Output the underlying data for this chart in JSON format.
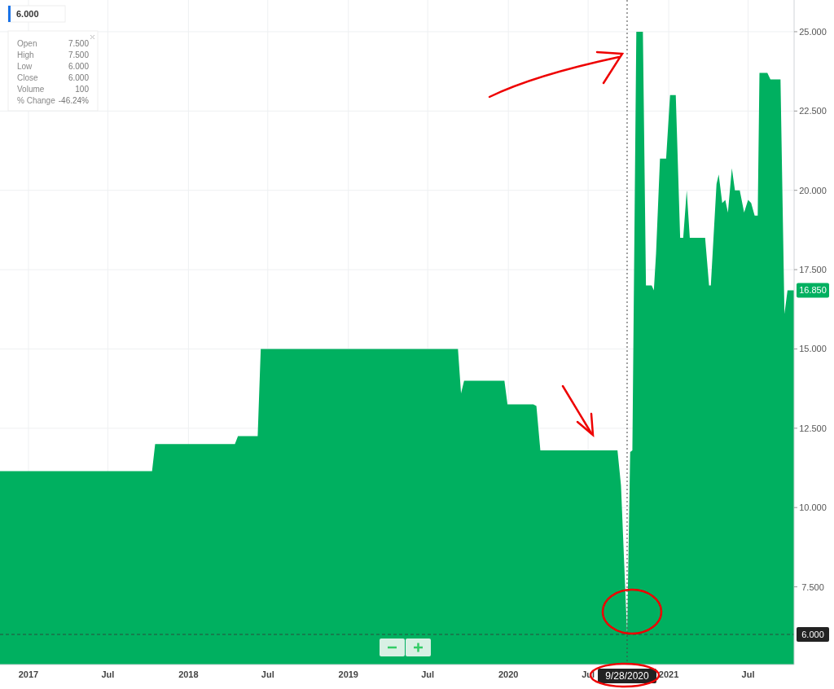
{
  "chart_data": {
    "type": "area",
    "x": [
      "2016-10-28",
      "2017-10-10",
      "2017-10-17",
      "2018-04-17",
      "2018-04-24",
      "2018-06-08",
      "2018-06-15",
      "2019-09-08",
      "2019-09-15",
      "2019-09-22",
      "2019-12-23",
      "2019-12-30",
      "2020-02-27",
      "2020-03-05",
      "2020-03-14",
      "2020-09-06",
      "2020-09-14",
      "2020-09-28",
      "2020-10-05",
      "2020-10-10",
      "2020-10-19",
      "2020-11-03",
      "2020-11-10",
      "2020-11-23",
      "2020-11-28",
      "2020-12-03",
      "2020-12-12",
      "2020-12-26",
      "2021-01-04",
      "2021-01-17",
      "2021-01-27",
      "2021-02-03",
      "2021-02-11",
      "2021-02-18",
      "2021-03-25",
      "2021-04-03",
      "2021-04-07",
      "2021-04-20",
      "2021-04-25",
      "2021-05-03",
      "2021-05-10",
      "2021-05-16",
      "2021-05-25",
      "2021-06-01",
      "2021-06-12",
      "2021-06-22",
      "2021-07-01",
      "2021-07-08",
      "2021-07-16",
      "2021-07-23",
      "2021-07-27",
      "2021-08-14",
      "2021-08-21",
      "2021-09-13",
      "2021-09-22",
      "2021-09-29",
      "2021-10-14"
    ],
    "series": [
      {
        "color": "#00b060",
        "values": [
          11.15,
          11.15,
          12.0,
          12.0,
          12.25,
          12.25,
          15.0,
          15.0,
          13.6,
          14.0,
          14.0,
          13.25,
          13.25,
          13.2,
          11.8,
          11.8,
          10.7,
          6.0,
          11.75,
          11.8,
          25.0,
          25.0,
          17.0,
          17.0,
          16.85,
          18.0,
          21.0,
          21.0,
          23.0,
          23.0,
          18.5,
          18.5,
          20.0,
          18.5,
          18.5,
          17.0,
          17.0,
          20.2,
          20.5,
          19.6,
          19.7,
          19.3,
          20.7,
          20.0,
          20.0,
          19.3,
          19.7,
          19.6,
          19.2,
          19.2,
          23.7,
          23.7,
          23.5,
          23.5,
          16.1,
          16.85,
          16.85
        ]
      }
    ],
    "xlim": [
      "2016-10-28",
      "2021-10-14"
    ],
    "xticks": [
      {
        "value": "2017-01-01",
        "label": "2017"
      },
      {
        "value": "2017-07-01",
        "label": "Jul"
      },
      {
        "value": "2018-01-01",
        "label": "2018"
      },
      {
        "value": "2018-07-01",
        "label": "Jul"
      },
      {
        "value": "2019-01-01",
        "label": "2019"
      },
      {
        "value": "2019-07-01",
        "label": "Jul"
      },
      {
        "value": "2020-01-01",
        "label": "2020"
      },
      {
        "value": "2020-07-01",
        "label": "Jul"
      },
      {
        "value": "2021-01-01",
        "label": "2021"
      },
      {
        "value": "2021-07-01",
        "label": "Jul"
      }
    ],
    "ylim": [
      5.05,
      26
    ],
    "yticks": [
      {
        "value": 7.5,
        "label": "7.500"
      },
      {
        "value": 10,
        "label": "10.000"
      },
      {
        "value": 12.5,
        "label": "12.500"
      },
      {
        "value": 15,
        "label": "15.000"
      },
      {
        "value": 17.5,
        "label": "17.500"
      },
      {
        "value": 20,
        "label": "20.000"
      },
      {
        "value": 22.5,
        "label": "22.500"
      },
      {
        "value": 25,
        "label": "25.000"
      }
    ],
    "grid": true,
    "ref_lines": [
      {
        "axis": "y",
        "value": 6.0,
        "label": "6.000",
        "line_style": "dashed"
      },
      {
        "axis": "x",
        "value": "2020-09-28",
        "label": "9/28/2020",
        "line_style": "dotted"
      }
    ],
    "annotations": [
      "6.000",
      "Open",
      "7.500",
      "High",
      "7.500",
      "Low",
      "6.000",
      "Close",
      "6.000",
      "Volume",
      "100",
      "% Change",
      "-46.24%",
      {
        "text": "16.850",
        "x": "2021-10-14",
        "y": 16.85
      }
    ]
  }
}
